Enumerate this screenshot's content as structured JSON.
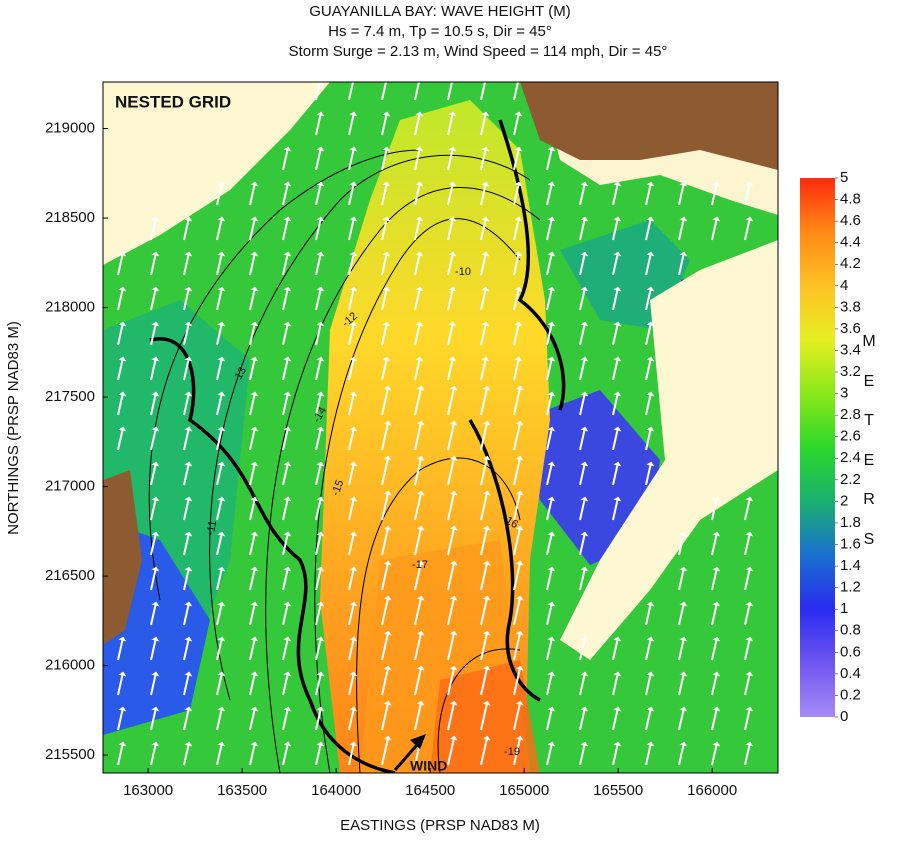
{
  "chart_data": {
    "type": "contour",
    "title": "GUAYANILLA BAY: WAVE HEIGHT (M)",
    "subtitle": [
      "Hs = 7.4 m, Tp = 10.5 s, Dir = 45°",
      "Storm Surge = 2.13 m, Wind Speed = 114 mph, Dir = 45°"
    ],
    "x_label": "EASTINGS (PRSP NAD83 M)",
    "y_label": "NORTHINGS (PRSP NAD83 M)",
    "xlim": [
      162760,
      166350
    ],
    "ylim": [
      215400,
      219260
    ],
    "xticks": [
      163000,
      163500,
      164000,
      164500,
      165000,
      165500,
      166000
    ],
    "yticks": [
      215500,
      216000,
      216500,
      217000,
      217500,
      218000,
      218500,
      219000
    ],
    "annotations": [
      "NESTED GRID",
      "WIND"
    ],
    "contour_labels": [
      "-15",
      "-17",
      "-19",
      "-13",
      "-11",
      "-10",
      "-12",
      "-14",
      "-16"
    ],
    "colorbar": {
      "label": "METERS",
      "lim": [
        0,
        5
      ],
      "ticks": [
        0,
        0.2,
        0.4,
        0.6,
        0.8,
        1,
        1.2,
        1.4,
        1.6,
        1.8,
        2,
        2.2,
        2.4,
        2.6,
        2.8,
        3,
        3.2,
        3.4,
        3.6,
        3.8,
        4,
        4.2,
        4.4,
        4.6,
        4.8,
        5
      ],
      "colors": [
        "#a58cf5",
        "#6f55f0",
        "#2a2cf0",
        "#1a6fd0",
        "#1ab070",
        "#2cd82a",
        "#8ae81a",
        "#e6ef22",
        "#ffc126",
        "#ff8a14",
        "#ff2a10"
      ]
    }
  }
}
